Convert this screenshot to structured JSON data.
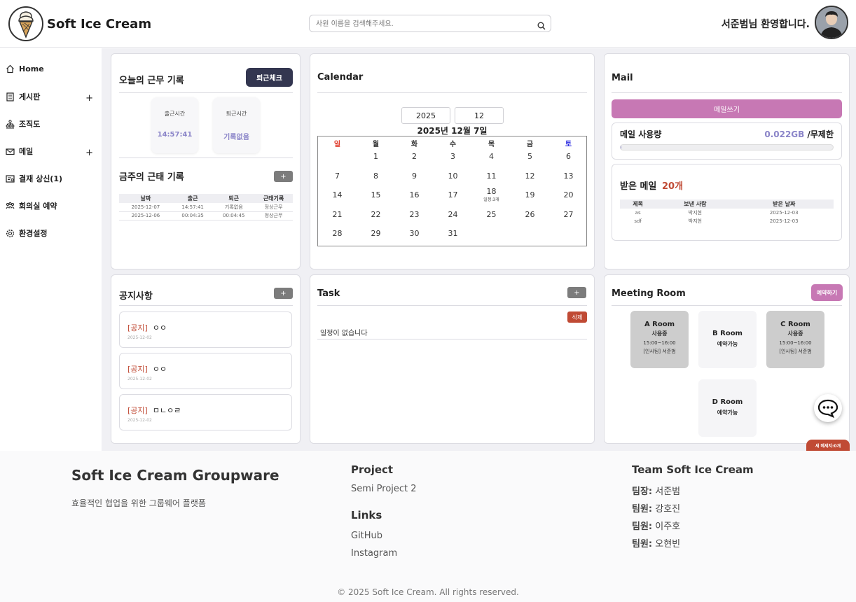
{
  "header": {
    "brand": "Soft Ice Cream",
    "search_placeholder": "사원 이름을 검색해주세요.",
    "welcome": "서준범님 환영합니다."
  },
  "sidebar": {
    "items": [
      {
        "label": "Home",
        "icon": "home-icon",
        "expandable": false
      },
      {
        "label": "게시판",
        "icon": "board-icon",
        "expandable": true
      },
      {
        "label": "조직도",
        "icon": "org-chart-icon",
        "expandable": false
      },
      {
        "label": "메일",
        "icon": "mail-icon",
        "expandable": true
      },
      {
        "label": "결재 상신(1)",
        "icon": "approval-icon",
        "expandable": false
      },
      {
        "label": "회의실 예약",
        "icon": "meeting-icon",
        "expandable": false
      },
      {
        "label": "환경설정",
        "icon": "gear-icon",
        "expandable": false
      }
    ],
    "plus": "+"
  },
  "work": {
    "title": "오늘의 근무 기록",
    "checkout_button": "퇴근체크",
    "in_label": "출근시간",
    "in_value": "14:57:41",
    "out_label": "퇴근시간",
    "out_value": "기록없음"
  },
  "weekly": {
    "title": "금주의 근태 기록",
    "add": "+",
    "headers": [
      "날짜",
      "출근",
      "퇴근",
      "근태기록"
    ],
    "rows": [
      [
        "2025-12-07",
        "14:57:41",
        "기록없음",
        "정상근무"
      ],
      [
        "2025-12-06",
        "00:04:35",
        "00:04:45",
        "정상근무"
      ]
    ]
  },
  "notices": {
    "title": "공지사항",
    "add": "+",
    "items": [
      {
        "tag": "[공지]",
        "title": "ㅇㅇ",
        "date": "2025-12-02"
      },
      {
        "tag": "[공지]",
        "title": "ㅇㅇ",
        "date": "2025-12-02"
      },
      {
        "tag": "[공지]",
        "title": "ㅁㄴㅇㄹ",
        "date": "2025-12-02"
      }
    ]
  },
  "calendar": {
    "title": "Calendar",
    "year": "2025",
    "month": "12",
    "heading": "2025년 12월 7일",
    "weekdays": [
      "일",
      "월",
      "화",
      "수",
      "목",
      "금",
      "토"
    ],
    "weekday_colors": {
      "sun": "#e03a2a",
      "sat": "#2a2ae0"
    },
    "start_offset": 1,
    "days_in_month": 31,
    "events": {
      "18": "일정:3개"
    }
  },
  "task": {
    "title": "Task",
    "add": "+",
    "delete": "삭제",
    "empty": "일정이 없습니다"
  },
  "mail": {
    "title": "Mail",
    "write_button": "메일쓰기",
    "usage_label": "메일 사용량",
    "usage_value": "0.022GB",
    "usage_limit": "/무제한",
    "usage_fraction": 0.003,
    "received_label": "받은 메일",
    "received_count": "20개",
    "headers": [
      "제목",
      "보낸 사람",
      "받은 날짜"
    ],
    "rows": [
      [
        "as",
        "박지현",
        "2025-12-03"
      ],
      [
        "sdf",
        "박지현",
        "2025-12-03"
      ]
    ]
  },
  "meeting": {
    "title": "Meeting Room",
    "reserve_button": "예약하기",
    "rooms": [
      {
        "name": "A Room",
        "status": "사용중",
        "time": "15:00~16:00",
        "user": "[인사팀] 서준범",
        "busy": true
      },
      {
        "name": "B Room",
        "status": "예약가능",
        "time": "",
        "user": "",
        "busy": false
      },
      {
        "name": "C Room",
        "status": "사용중",
        "time": "15:00~16:00",
        "user": "[인사팀] 서준범",
        "busy": true
      },
      {
        "name": "D Room",
        "status": "예약가능",
        "time": "",
        "user": "",
        "busy": false
      }
    ],
    "new_messages": "새 메세지:0개"
  },
  "footer": {
    "title": "Soft Ice Cream Groupware",
    "subtitle": "효율적인 협업을 위한 그룹웨어 플랫폼",
    "project_heading": "Project",
    "project_name": "Semi Project 2",
    "links_heading": "Links",
    "links": [
      "GitHub",
      "Instagram"
    ],
    "team_heading": "Team Soft Ice Cream",
    "members": [
      {
        "role": "팀장:",
        "name": "서준범"
      },
      {
        "role": "팀원:",
        "name": "강호진"
      },
      {
        "role": "팀원:",
        "name": "이주호"
      },
      {
        "role": "팀원:",
        "name": "오현빈"
      }
    ],
    "copyright": "© 2025 Soft Ice Cream. All rights reserved."
  }
}
